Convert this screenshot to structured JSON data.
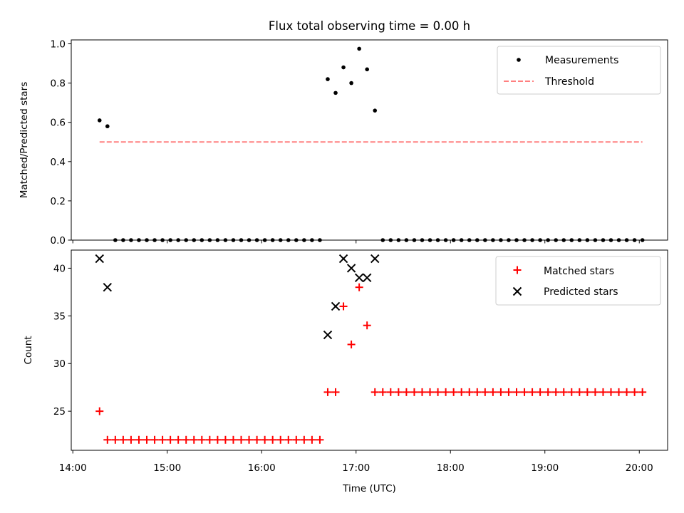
{
  "chart_data": [
    {
      "type": "scatter",
      "title": "Flux total observing time = 0.00 h",
      "xlabel": "",
      "ylabel": "Matched/Predicted stars",
      "xlim": [
        "13:59",
        "20:18"
      ],
      "ylim": [
        0,
        1.02
      ],
      "yticks": [
        0.0,
        0.2,
        0.4,
        0.6,
        0.8,
        1.0
      ],
      "ytick_labels": [
        "0.0",
        "0.2",
        "0.4",
        "0.6",
        "0.8",
        "1.0"
      ],
      "grid": false,
      "legend_position": "upper-right",
      "series": [
        {
          "name": "Measurements",
          "marker": "dot",
          "color": "#000000",
          "x": [
            "14:17",
            "14:22",
            "14:27",
            "14:32",
            "14:37",
            "14:42",
            "14:47",
            "14:52",
            "14:57",
            "15:02",
            "15:07",
            "15:12",
            "15:17",
            "15:22",
            "15:27",
            "15:32",
            "15:37",
            "15:42",
            "15:47",
            "15:52",
            "15:57",
            "16:02",
            "16:07",
            "16:12",
            "16:17",
            "16:22",
            "16:27",
            "16:32",
            "16:37",
            "16:42",
            "16:47",
            "16:52",
            "16:57",
            "17:02",
            "17:07",
            "17:12",
            "17:17",
            "17:22",
            "17:27",
            "17:32",
            "17:37",
            "17:42",
            "17:47",
            "17:52",
            "17:57",
            "18:02",
            "18:07",
            "18:12",
            "18:17",
            "18:22",
            "18:27",
            "18:32",
            "18:37",
            "18:42",
            "18:47",
            "18:52",
            "18:57",
            "19:02",
            "19:07",
            "19:12",
            "19:17",
            "19:22",
            "19:27",
            "19:32",
            "19:37",
            "19:42",
            "19:47",
            "19:52",
            "19:57",
            "20:02"
          ],
          "y": [
            0.61,
            0.58,
            0,
            0,
            0,
            0,
            0,
            0,
            0,
            0,
            0,
            0,
            0,
            0,
            0,
            0,
            0,
            0,
            0,
            0,
            0,
            0,
            0,
            0,
            0,
            0,
            0,
            0,
            0,
            0.82,
            0.75,
            0.88,
            0.8,
            0.975,
            0.87,
            0.66,
            0,
            0,
            0,
            0,
            0,
            0,
            0,
            0,
            0,
            0,
            0,
            0,
            0,
            0,
            0,
            0,
            0,
            0,
            0,
            0,
            0,
            0,
            0,
            0,
            0,
            0,
            0,
            0,
            0,
            0,
            0,
            0,
            0,
            0
          ]
        },
        {
          "name": "Threshold",
          "marker": "dashed-line",
          "color": "#ff8080",
          "x": [
            "14:17",
            "20:02"
          ],
          "y": [
            0.5,
            0.5
          ]
        }
      ]
    },
    {
      "type": "scatter",
      "title": "",
      "xlabel": "Time (UTC)",
      "ylabel": "Count",
      "xlim": [
        "13:59",
        "20:18"
      ],
      "ylim": [
        20.9,
        41.9
      ],
      "xticks": [
        "14:00",
        "15:00",
        "16:00",
        "17:00",
        "18:00",
        "19:00",
        "20:00"
      ],
      "yticks": [
        25,
        30,
        35,
        40
      ],
      "ytick_labels": [
        "25",
        "30",
        "35",
        "40"
      ],
      "grid": false,
      "legend_position": "upper-right",
      "series": [
        {
          "name": "Matched stars",
          "marker": "plus",
          "color": "#ff0000",
          "x": [
            "14:17",
            "14:22",
            "14:27",
            "14:32",
            "14:37",
            "14:42",
            "14:47",
            "14:52",
            "14:57",
            "15:02",
            "15:07",
            "15:12",
            "15:17",
            "15:22",
            "15:27",
            "15:32",
            "15:37",
            "15:42",
            "15:47",
            "15:52",
            "15:57",
            "16:02",
            "16:07",
            "16:12",
            "16:17",
            "16:22",
            "16:27",
            "16:32",
            "16:37",
            "16:42",
            "16:47",
            "16:52",
            "16:57",
            "17:02",
            "17:07",
            "17:12",
            "17:17",
            "17:22",
            "17:27",
            "17:32",
            "17:37",
            "17:42",
            "17:47",
            "17:52",
            "17:57",
            "18:02",
            "18:07",
            "18:12",
            "18:17",
            "18:22",
            "18:27",
            "18:32",
            "18:37",
            "18:42",
            "18:47",
            "18:52",
            "18:57",
            "19:02",
            "19:07",
            "19:12",
            "19:17",
            "19:22",
            "19:27",
            "19:32",
            "19:37",
            "19:42",
            "19:47",
            "19:52",
            "19:57",
            "20:02"
          ],
          "y": [
            25,
            22,
            22,
            22,
            22,
            22,
            22,
            22,
            22,
            22,
            22,
            22,
            22,
            22,
            22,
            22,
            22,
            22,
            22,
            22,
            22,
            22,
            22,
            22,
            22,
            22,
            22,
            22,
            22,
            27,
            27,
            36,
            32,
            38,
            34,
            27,
            27,
            27,
            27,
            27,
            27,
            27,
            27,
            27,
            27,
            27,
            27,
            27,
            27,
            27,
            27,
            27,
            27,
            27,
            27,
            27,
            27,
            27,
            27,
            27,
            27,
            27,
            27,
            27,
            27,
            27,
            27,
            27,
            27,
            27
          ]
        },
        {
          "name": "Predicted stars",
          "marker": "x",
          "color": "#000000",
          "x": [
            "14:17",
            "14:22",
            "16:42",
            "16:47",
            "16:52",
            "16:57",
            "17:02",
            "17:07",
            "17:12"
          ],
          "y": [
            41,
            38,
            33,
            36,
            41,
            40,
            39,
            39,
            41
          ]
        }
      ]
    }
  ]
}
